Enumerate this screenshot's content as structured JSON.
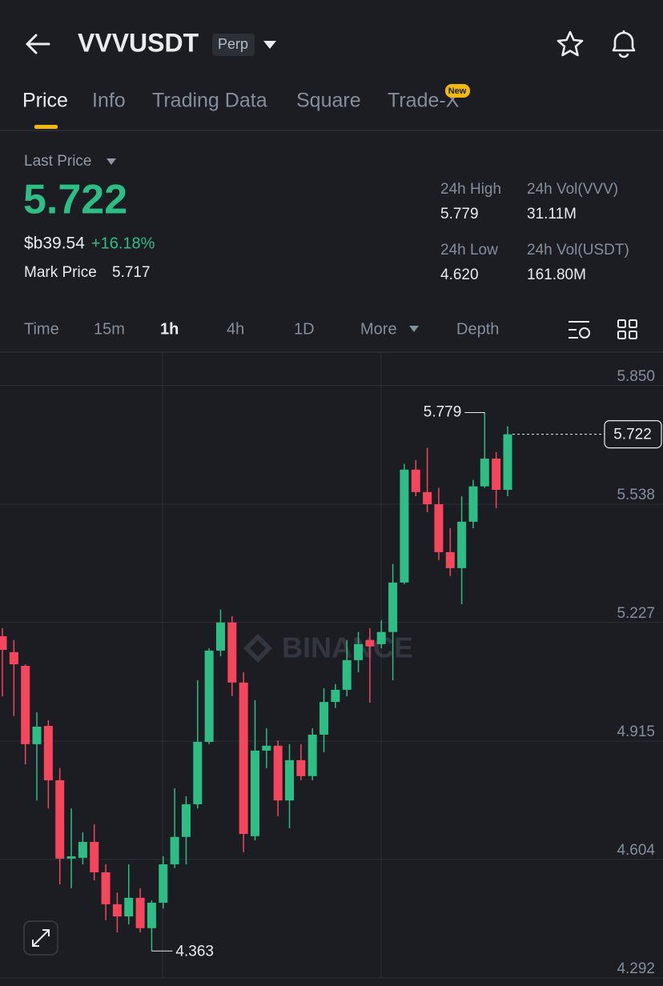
{
  "header": {
    "title": "VVVUSDT",
    "badge": "Perp"
  },
  "tabs": [
    "Price",
    "Info",
    "Trading Data",
    "Square",
    "Trade-X"
  ],
  "new_badge": "New",
  "ticker": {
    "last_price_label": "Last Price",
    "last_price": "5.722",
    "fiat_price": "$b39.54",
    "change": "+16.18%",
    "mark_price_label": "Mark Price",
    "mark_price": "5.717",
    "stats": [
      {
        "label": "24h High",
        "value": "5.779"
      },
      {
        "label": "24h Vol(VVV)",
        "value": "31.11M"
      },
      {
        "label": "24h Low",
        "value": "4.620"
      },
      {
        "label": "24h Vol(USDT)",
        "value": "161.80M"
      }
    ]
  },
  "intervals": [
    "Time",
    "15m",
    "1h",
    "4h",
    "1D",
    "More",
    "Depth"
  ],
  "chart_data": {
    "type": "candlestick",
    "watermark": "BINANCE",
    "open": [
      5.191,
      5.149,
      5.113,
      4.907,
      4.955,
      4.812,
      4.606,
      4.608,
      4.65,
      4.57,
      4.486,
      4.454,
      4.503,
      4.423,
      4.49,
      4.591,
      4.663,
      4.749,
      4.913,
      5.153,
      5.227,
      5.069,
      4.665,
      4.89,
      4.903,
      4.759,
      4.865,
      4.823,
      4.932,
      5.018,
      5.05,
      5.128,
      5.181,
      5.17,
      5.202,
      5.332,
      5.629,
      5.57,
      5.538,
      5.412,
      5.37,
      5.492,
      5.585,
      5.658,
      5.576
    ],
    "high": [
      5.212,
      5.181,
      5.117,
      4.991,
      4.97,
      4.844,
      4.738,
      4.675,
      4.696,
      4.591,
      4.517,
      4.591,
      4.528,
      4.496,
      4.612,
      4.791,
      4.77,
      5.075,
      5.159,
      5.261,
      5.244,
      5.096,
      5.023,
      4.949,
      4.917,
      4.907,
      4.907,
      4.949,
      5.054,
      5.065,
      5.181,
      5.202,
      5.212,
      5.233,
      5.381,
      5.644,
      5.654,
      5.686,
      5.581,
      5.475,
      5.559,
      5.602,
      5.779,
      5.675,
      5.743
    ],
    "low": [
      5.033,
      4.981,
      4.854,
      4.759,
      4.738,
      4.538,
      4.528,
      4.591,
      4.549,
      4.444,
      4.412,
      4.433,
      4.412,
      4.363,
      4.475,
      4.581,
      4.591,
      4.738,
      4.907,
      5.138,
      5.033,
      4.623,
      4.654,
      4.844,
      4.717,
      4.686,
      4.812,
      4.812,
      4.886,
      5.002,
      5.033,
      5.096,
      5.016,
      5.159,
      5.075,
      5.328,
      5.559,
      5.517,
      5.391,
      5.349,
      5.275,
      5.475,
      5.581,
      5.528,
      5.559
    ],
    "close": [
      5.155,
      5.117,
      4.907,
      4.953,
      4.812,
      4.606,
      4.612,
      4.65,
      4.57,
      4.486,
      4.454,
      4.503,
      4.423,
      4.49,
      4.591,
      4.663,
      4.749,
      4.913,
      5.153,
      5.227,
      5.069,
      4.671,
      4.89,
      4.903,
      4.759,
      4.865,
      4.823,
      4.932,
      5.018,
      5.05,
      5.128,
      5.17,
      5.164,
      5.202,
      5.332,
      5.629,
      5.57,
      5.538,
      5.412,
      5.37,
      5.492,
      5.585,
      5.658,
      5.576,
      5.722
    ],
    "up_color": "#2ebd85",
    "down_color": "#f6465d",
    "ylim": [
      4.271,
      5.938
    ],
    "yticks": [
      {
        "value": 5.85,
        "label": "5.850"
      },
      5.538,
      5.227,
      4.915,
      4.604,
      4.292
    ],
    "grid": true
  }
}
